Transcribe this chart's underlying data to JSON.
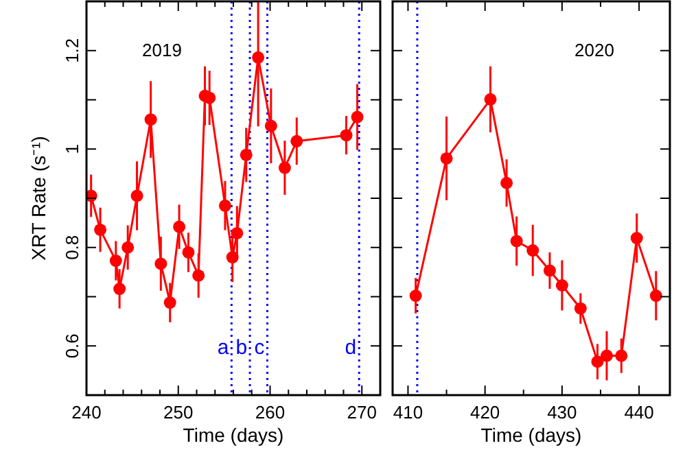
{
  "chart_data": [
    {
      "type": "line",
      "title": "2019",
      "xlabel": "Time (days)",
      "ylabel": "XRT Rate (s⁻¹)",
      "xlim": [
        240,
        272
      ],
      "ylim": [
        0.5,
        1.3
      ],
      "xticks": [
        240,
        {
          "value": 242,
          "label": null
        },
        {
          "value": 244,
          "label": null
        },
        {
          "value": 246,
          "label": null
        },
        {
          "value": 248,
          "label": null
        },
        250,
        {
          "value": 252,
          "label": null
        },
        {
          "value": 254,
          "label": null
        },
        {
          "value": 256,
          "label": null
        },
        {
          "value": 258,
          "label": null
        },
        260,
        {
          "value": 262,
          "label": null
        },
        {
          "value": 264,
          "label": null
        },
        {
          "value": 266,
          "label": null
        },
        {
          "value": 268,
          "label": null
        },
        270
      ],
      "yticks": [
        0.6,
        {
          "value": 0.7,
          "label": null
        },
        0.8,
        {
          "value": 0.9,
          "label": null
        },
        1,
        {
          "value": 1.1,
          "label": null
        },
        1.2
      ],
      "marker": "circle",
      "line_style": "solid",
      "grid": false,
      "series": [
        {
          "color": "#ff0000",
          "x": [
            240.5,
            241.5,
            243.2,
            243.6,
            244.5,
            245.5,
            247,
            248.1,
            249.1,
            250.1,
            251.1,
            252.2,
            252.9,
            253.4,
            255.1,
            255.9,
            256.4,
            257.4,
            258.7,
            260.1,
            261.6,
            262.9,
            268.3,
            269.5
          ],
          "values": [
            0.905,
            0.836,
            0.773,
            0.716,
            0.8,
            0.905,
            1.06,
            0.767,
            0.688,
            0.842,
            0.79,
            0.743,
            1.108,
            1.104,
            0.885,
            0.78,
            0.829,
            0.988,
            1.186,
            1.047,
            0.962,
            1.016,
            1.028,
            1.065
          ],
          "errors": [
            0.043,
            0.045,
            0.04,
            0.04,
            0.045,
            0.07,
            0.078,
            0.055,
            0.04,
            0.045,
            0.04,
            0.045,
            0.06,
            0.055,
            0.05,
            0.05,
            0.055,
            0.055,
            0.14,
            0.076,
            0.055,
            0.048,
            0.039,
            0.067
          ]
        }
      ],
      "ref_lines": [
        {
          "axis": "x",
          "value": 255.8,
          "label": "a",
          "color": "#0000ff",
          "line_style": "dotted"
        },
        {
          "axis": "x",
          "value": 257.8,
          "label": "b",
          "color": "#0000ff",
          "line_style": "dotted"
        },
        {
          "axis": "x",
          "value": 259.7,
          "label": "c",
          "color": "#0000ff",
          "line_style": "dotted"
        },
        {
          "axis": "x",
          "value": 269.7,
          "label": "d",
          "color": "#0000ff",
          "line_style": "dotted"
        }
      ]
    },
    {
      "type": "line",
      "title": "2020",
      "xlabel": "Time (days)",
      "xlim": [
        408,
        444
      ],
      "ylim": [
        0.5,
        1.3
      ],
      "tick_labels": "x",
      "xticks": [
        410,
        {
          "value": 415,
          "label": null
        },
        420,
        {
          "value": 425,
          "label": null
        },
        430,
        {
          "value": 435,
          "label": null
        },
        440
      ],
      "yticks": [
        {
          "value": 0.6,
          "label": null
        },
        {
          "value": 0.7,
          "label": null
        },
        {
          "value": 0.8,
          "label": null
        },
        {
          "value": 0.9,
          "label": null
        },
        {
          "value": 1,
          "label": null
        },
        {
          "value": 1.1,
          "label": null
        },
        {
          "value": 1.2,
          "label": null
        }
      ],
      "marker": "circle",
      "line_style": "solid",
      "grid": false,
      "series": [
        {
          "color": "#ff0000",
          "x": [
            411,
            415,
            420.7,
            422.8,
            424.1,
            426.2,
            428.4,
            430,
            432.4,
            434.6,
            435.8,
            437.7,
            439.7,
            442.2
          ],
          "values": [
            0.702,
            0.981,
            1.101,
            0.931,
            0.813,
            0.794,
            0.753,
            0.723,
            0.676,
            0.568,
            0.58,
            0.58,
            0.819,
            0.702
          ],
          "errors": [
            0.036,
            0.085,
            0.067,
            0.048,
            0.05,
            0.052,
            0.037,
            0.051,
            0.031,
            0.036,
            0.05,
            0.035,
            0.05,
            0.05
          ]
        }
      ],
      "ref_lines": [
        {
          "axis": "x",
          "value": 411.2,
          "label": null,
          "color": "#0000ff",
          "line_style": "dotted"
        }
      ]
    }
  ]
}
